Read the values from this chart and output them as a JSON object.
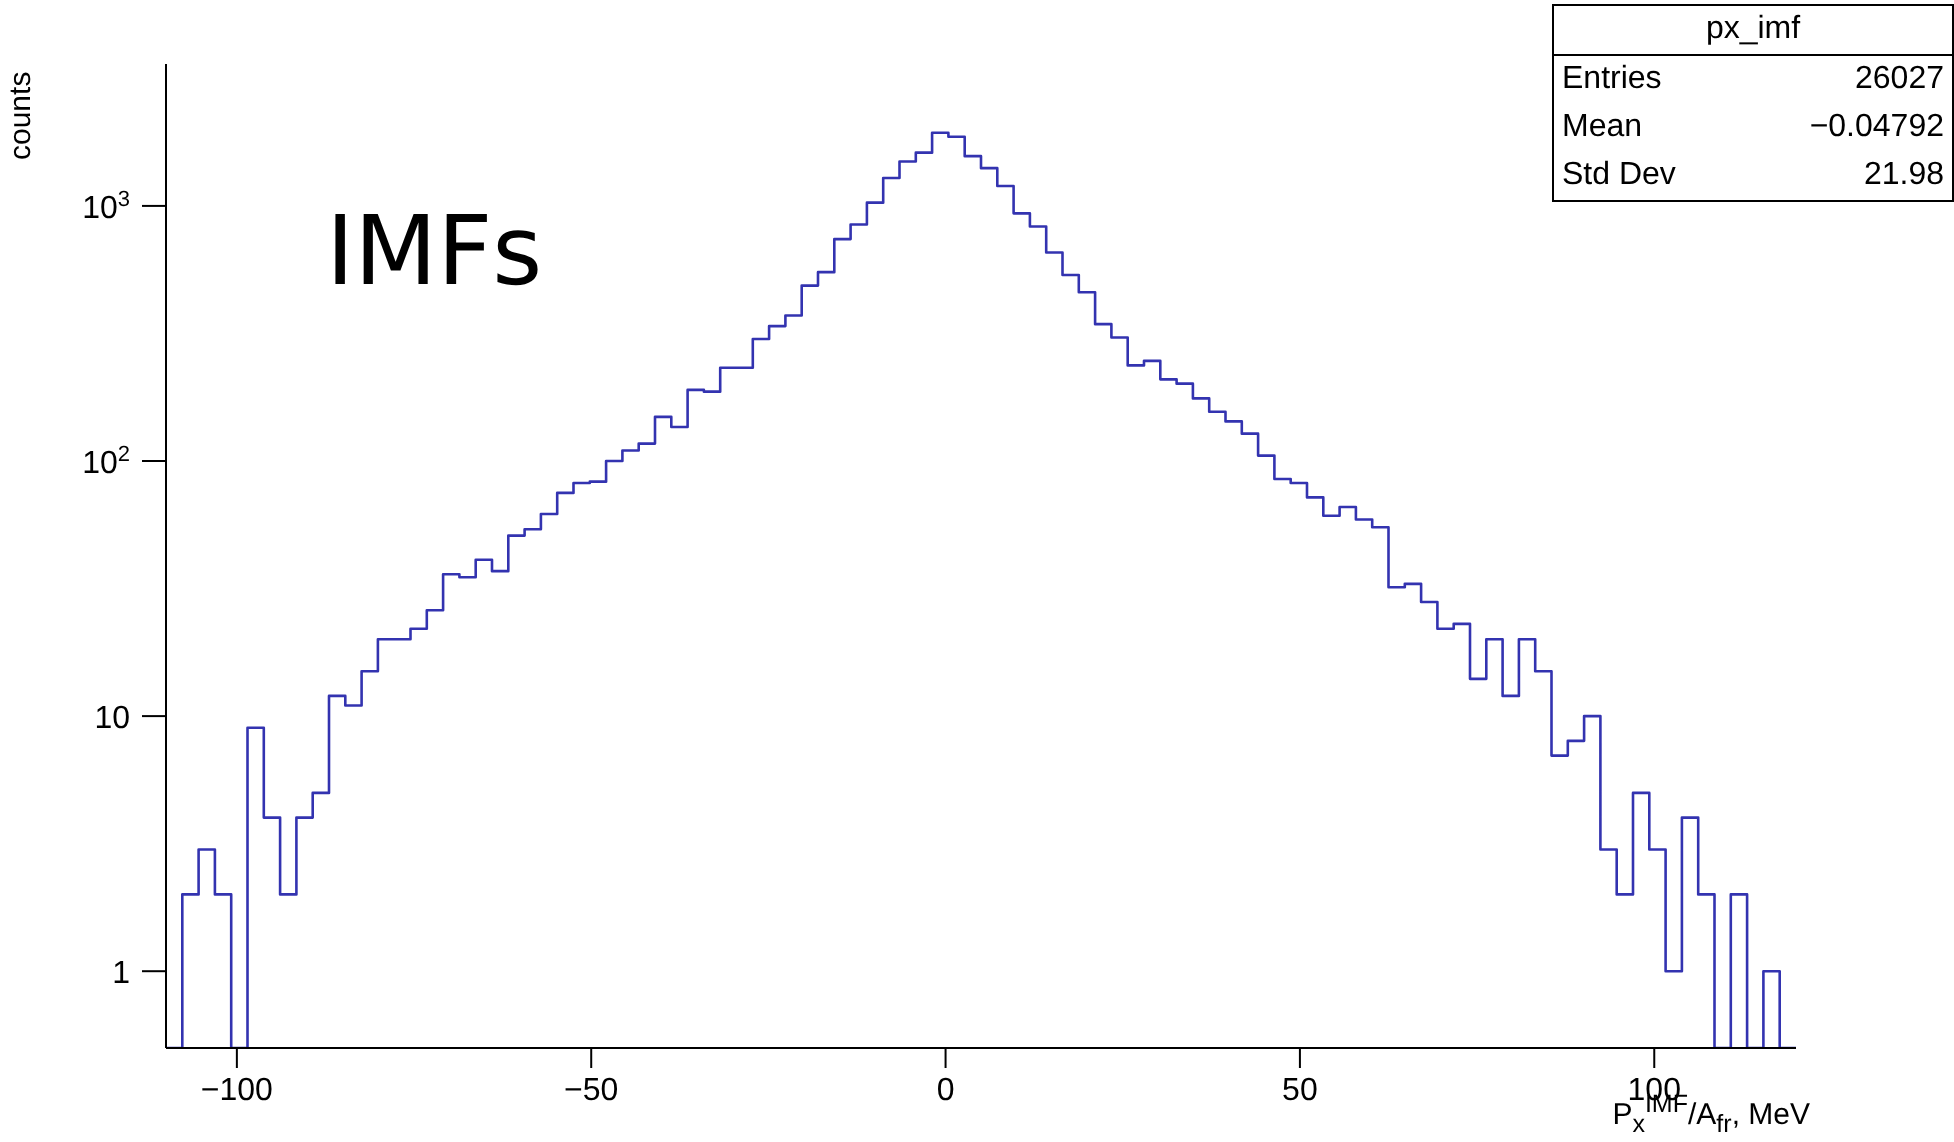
{
  "chart_data": {
    "type": "histogram",
    "xlabel": "P$_{x}$$^{IMF}$/A$_{fr}$, MeV",
    "ylabel": "counts",
    "color": "#3333b0",
    "log": "y",
    "xlim": [
      -110,
      120
    ],
    "ylim": [
      0.5,
      3600
    ],
    "xticks": [
      {
        "value": -100,
        "label": "−100"
      },
      {
        "value": -50,
        "label": "−50"
      },
      0,
      50,
      100
    ],
    "yticks": [
      1,
      10,
      {
        "value": 100,
        "label": "10$^{2}$"
      },
      {
        "value": 1000,
        "label": "10$^{3}$"
      }
    ],
    "annotations": [
      "IMFs",
      "px_imf",
      "Entries",
      "26027",
      "Mean",
      "−0.04792",
      "Std Dev",
      "21.98"
    ],
    "bins": [
      -110,
      -107.7,
      -105.4,
      -103.1,
      -100.8,
      -98.5,
      -96.2,
      -93.9,
      -91.6,
      -89.3,
      -87,
      -84.7,
      -82.4,
      -80.1,
      -77.8,
      -75.5,
      -73.2,
      -70.9,
      -68.6,
      -66.3,
      -64,
      -61.7,
      -59.4,
      -57.1,
      -54.8,
      -52.5,
      -50.2,
      -47.9,
      -45.6,
      -43.3,
      -41,
      -38.7,
      -36.4,
      -34.1,
      -31.8,
      -29.5,
      -27.2,
      -24.9,
      -22.6,
      -20.3,
      -18,
      -15.7,
      -13.4,
      -11.1,
      -8.8,
      -6.5,
      -4.2,
      -1.9,
      0.4,
      2.7,
      5,
      7.3,
      9.6,
      11.9,
      14.2,
      16.5,
      18.8,
      21.1,
      23.4,
      25.7,
      28,
      30.3,
      32.6,
      34.9,
      37.2,
      39.5,
      41.8,
      44.1,
      46.4,
      48.7,
      51,
      53.3,
      55.6,
      57.9,
      60.2,
      62.5,
      64.8,
      67.1,
      69.4,
      71.7,
      74,
      76.3,
      78.6,
      80.9,
      83.2,
      85.5,
      87.8,
      90.1,
      92.4,
      94.7,
      97,
      99.3,
      101.6,
      103.9,
      106.2,
      108.5,
      110.8,
      113.1,
      115.4,
      117.7,
      120
    ],
    "values": [
      null,
      2,
      3,
      2,
      null,
      9,
      4,
      2,
      4,
      5,
      12,
      11,
      15,
      20,
      20,
      22,
      26,
      36,
      35,
      41,
      37,
      51,
      54,
      62,
      75,
      82,
      83,
      100,
      110,
      117,
      149,
      136,
      190,
      187,
      232,
      232,
      301,
      338,
      372,
      487,
      550,
      741,
      846,
      1030,
      1286,
      1493,
      1617,
      1936,
      1868,
      1567,
      1406,
      1197,
      935,
      830,
      657,
      536,
      459,
      344,
      305,
      237,
      247,
      209,
      201,
      176,
      156,
      143,
      128,
      105,
      85,
      82,
      72,
      61,
      66,
      59,
      55,
      32,
      33,
      28,
      22,
      23,
      14,
      20,
      12,
      20,
      15,
      7,
      8,
      10,
      3,
      2,
      5,
      3,
      1,
      4,
      2,
      null,
      2,
      null,
      1,
      null
    ]
  }
}
